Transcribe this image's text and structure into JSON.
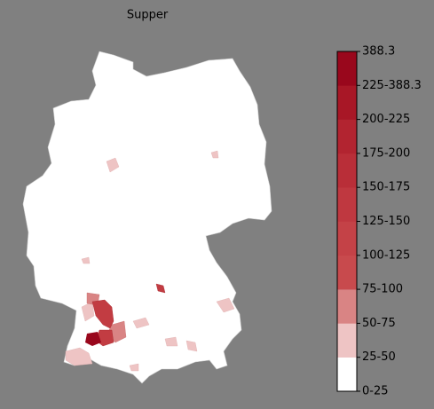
{
  "title": "Supper",
  "legend": {
    "labels": [
      "0-25",
      "25-50",
      "50-75",
      "75-100",
      "100-125",
      "125-150",
      "150-175",
      "175-200",
      "200-225",
      "225-388.3",
      "388.3"
    ],
    "colors": [
      "#ffffff",
      "#eec4c4",
      "#d98484",
      "#c84a4d",
      "#c44247",
      "#bf3840",
      "#b92e38",
      "#b22430",
      "#a81726",
      "#99071c"
    ]
  }
}
